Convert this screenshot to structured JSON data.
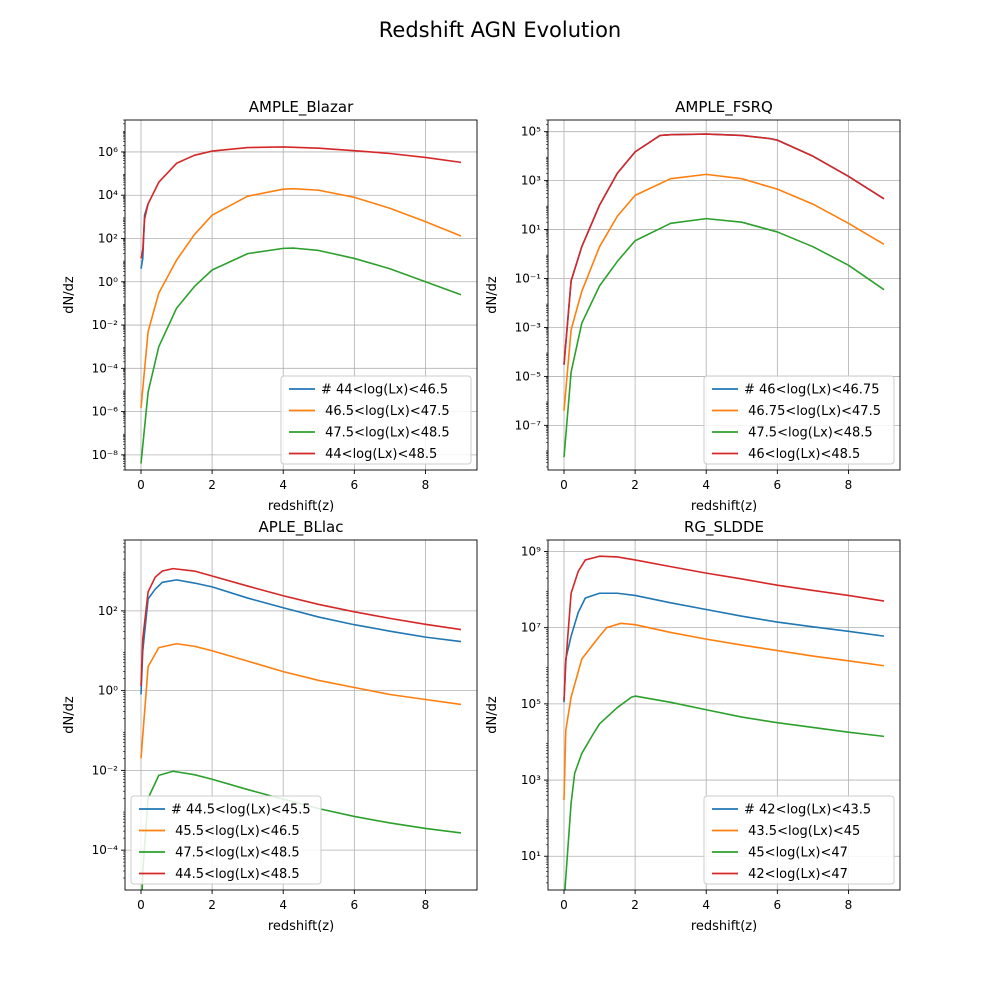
{
  "title": "Redshift AGN Evolution",
  "chart_data": [
    {
      "type": "line",
      "title": "AMPLE_Blazar",
      "xlabel": "redshift(z)",
      "ylabel": "dN/dz",
      "xscale": "linear",
      "yscale": "log",
      "xlim": [
        -0.45,
        9.45
      ],
      "ylim": [
        2e-09,
        30000000.0
      ],
      "xticks": [
        0,
        2,
        4,
        6,
        8
      ],
      "yticks": [
        -8,
        -6,
        -4,
        -2,
        0,
        2,
        4,
        6
      ],
      "grid": true,
      "legend_position": "lower-right",
      "series": [
        {
          "name": "# 44<log(Lx)<46.5",
          "color": "#1f77b4",
          "x": [
            0,
            0.05,
            0.1,
            0.2
          ],
          "y": [
            4,
            12,
            1200,
            4000
          ]
        },
        {
          "name": " 46.5<log(Lx)<47.5",
          "color": "#ff7f0e",
          "x": [
            0,
            0.2,
            0.5,
            1,
            1.5,
            2,
            3,
            4,
            4.3,
            5,
            6,
            7,
            8,
            9
          ],
          "y": [
            1.5e-06,
            0.005,
            0.3,
            10,
            150,
            1200,
            9000,
            19000,
            20000,
            17000,
            8000,
            2500,
            600,
            130
          ]
        },
        {
          "name": " 47.5<log(Lx)<48.5",
          "color": "#2ca02c",
          "x": [
            0,
            0.2,
            0.5,
            1,
            1.5,
            2,
            3,
            4,
            4.3,
            5,
            6,
            7,
            8,
            9
          ],
          "y": [
            4e-09,
            8e-06,
            0.001,
            0.06,
            0.6,
            3.5,
            20,
            35,
            36,
            28,
            12,
            4,
            1,
            0.25
          ]
        },
        {
          "name": " 44<log(Lx)<48.5",
          "color": "#d62728",
          "x": [
            0,
            0.05,
            0.1,
            0.2,
            0.5,
            1,
            1.5,
            2,
            3,
            4,
            5,
            6,
            7,
            8,
            9
          ],
          "y": [
            12,
            30,
            800,
            4000,
            40000,
            300000,
            700000,
            1100000,
            1600000,
            1700000,
            1500000,
            1150000,
            850000,
            560000,
            330000
          ]
        }
      ]
    },
    {
      "type": "line",
      "title": "AMPLE_FSRQ",
      "xlabel": "redshift(z)",
      "ylabel": "dN/dz",
      "xscale": "linear",
      "yscale": "log",
      "xlim": [
        -0.45,
        9.45
      ],
      "ylim": [
        1.5e-09,
        300000.0
      ],
      "xticks": [
        0,
        2,
        4,
        6,
        8
      ],
      "yticks": [
        -7,
        -5,
        -3,
        -1,
        1,
        3,
        5
      ],
      "grid": true,
      "legend_position": "lower-right",
      "series": [
        {
          "name": "# 46<log(Lx)<46.75",
          "color": "#1f77b4",
          "x": [
            0,
            0.2,
            0.5,
            1,
            1.5,
            2,
            2.7,
            3,
            4,
            5,
            5.8,
            6,
            7,
            8,
            9
          ],
          "y": [
            3e-05,
            0.08,
            2,
            100,
            2000,
            15000,
            70000,
            75000,
            80000,
            70000,
            52000,
            45000,
            10000,
            1500,
            180
          ]
        },
        {
          "name": " 46.75<log(Lx)<47.5",
          "color": "#ff7f0e",
          "x": [
            0,
            0.2,
            0.5,
            1,
            1.5,
            2,
            3,
            4,
            5,
            6,
            7,
            8,
            9
          ],
          "y": [
            4e-07,
            0.0008,
            0.03,
            2,
            35,
            250,
            1200,
            1800,
            1200,
            450,
            110,
            18,
            2.5
          ]
        },
        {
          "name": " 47.5<log(Lx)<48.5",
          "color": "#2ca02c",
          "x": [
            0,
            0.2,
            0.5,
            1,
            1.5,
            2,
            3,
            4,
            5,
            6,
            7,
            8,
            9
          ],
          "y": [
            5e-09,
            1.5e-05,
            0.0015,
            0.05,
            0.5,
            3.5,
            18,
            28,
            20,
            8,
            2,
            0.35,
            0.035
          ]
        },
        {
          "name": " 46<log(Lx)<48.5",
          "color": "#d62728",
          "x": [
            0,
            0.2,
            0.5,
            1,
            1.5,
            2,
            2.7,
            3,
            4,
            5,
            5.8,
            6,
            7,
            8,
            9
          ],
          "y": [
            3e-05,
            0.08,
            2,
            100,
            2000,
            15000,
            70000,
            75000,
            80000,
            70000,
            52000,
            45000,
            10000,
            1500,
            180
          ]
        }
      ]
    },
    {
      "type": "line",
      "title": "APLE_BLlac",
      "xlabel": "redshift(z)",
      "ylabel": "dN/dz",
      "xscale": "linear",
      "yscale": "log",
      "xlim": [
        -0.45,
        9.45
      ],
      "ylim": [
        1e-05,
        6000
      ],
      "xticks": [
        0,
        2,
        4,
        6,
        8
      ],
      "yticks": [
        -4,
        -2,
        0,
        2
      ],
      "grid": true,
      "legend_position": "lower-left",
      "series": [
        {
          "name": "# 44.5<log(Lx)<45.5",
          "color": "#1f77b4",
          "x": [
            0,
            0.05,
            0.2,
            0.4,
            0.6,
            1,
            1.5,
            2,
            3,
            4,
            5,
            6,
            7,
            8,
            9
          ],
          "y": [
            0.8,
            10,
            200,
            350,
            520,
            600,
            500,
            400,
            210,
            120,
            70,
            45,
            31,
            22,
            17
          ]
        },
        {
          "name": " 45.5<log(Lx)<46.5",
          "color": "#ff7f0e",
          "x": [
            0,
            0.2,
            0.5,
            1,
            1.5,
            2,
            3,
            4,
            5,
            6,
            7,
            8,
            9
          ],
          "y": [
            0.02,
            4,
            12,
            15,
            13,
            10,
            5.5,
            3,
            1.8,
            1.2,
            0.8,
            0.6,
            0.45
          ]
        },
        {
          "name": " 47.5<log(Lx)<48.5",
          "color": "#2ca02c",
          "x": [
            0,
            0.05,
            0.2,
            0.5,
            0.9,
            1.5,
            2,
            3,
            4,
            5,
            6,
            7,
            8,
            9
          ],
          "y": [
            1e-06,
            3e-05,
            0.002,
            0.0075,
            0.0095,
            0.0078,
            0.006,
            0.0033,
            0.0019,
            0.0011,
            0.0007,
            0.00048,
            0.00035,
            0.00027
          ]
        },
        {
          "name": " 44.5<log(Lx)<48.5",
          "color": "#d62728",
          "x": [
            0,
            0.05,
            0.2,
            0.4,
            0.6,
            0.9,
            1.5,
            2,
            3,
            4,
            5,
            6,
            7,
            8,
            9
          ],
          "y": [
            1.3,
            20,
            300,
            700,
            1000,
            1150,
            1000,
            750,
            420,
            240,
            145,
            95,
            65,
            46,
            34
          ]
        }
      ]
    },
    {
      "type": "line",
      "title": "RG_SLDDE",
      "xlabel": "redshift(z)",
      "ylabel": "dN/dz",
      "xscale": "linear",
      "yscale": "log",
      "xlim": [
        -0.45,
        9.45
      ],
      "ylim": [
        1.3,
        2000000000.0
      ],
      "xticks": [
        0,
        2,
        4,
        6,
        8
      ],
      "yticks": [
        1,
        3,
        5,
        7,
        9
      ],
      "grid": true,
      "legend_position": "lower-right",
      "series": [
        {
          "name": "# 42<log(Lx)<43.5",
          "color": "#1f77b4",
          "x": [
            0,
            0.05,
            0.2,
            0.4,
            0.6,
            1,
            1.5,
            2,
            3,
            4,
            5,
            6,
            7,
            8,
            9
          ],
          "y": [
            110000,
            1500000,
            6000000,
            25000000,
            60000000,
            80000000,
            80000000,
            70000000,
            45000000,
            30000000,
            20000000,
            14000000,
            10500000,
            8000000,
            6000000
          ]
        },
        {
          "name": " 43.5<log(Lx)<45",
          "color": "#ff7f0e",
          "x": [
            0,
            0.05,
            0.2,
            0.5,
            1,
            1.2,
            1.6,
            2,
            3,
            4,
            5,
            6,
            7,
            8,
            9
          ],
          "y": [
            300,
            20000,
            150000,
            1500000,
            6000000,
            10000000,
            13000000,
            12000000,
            7500000,
            5000000,
            3500000,
            2500000,
            1800000,
            1350000,
            1000000
          ]
        },
        {
          "name": " 45<log(Lx)<47",
          "color": "#2ca02c",
          "x": [
            0,
            0.2,
            0.3,
            0.5,
            0.8,
            1,
            1.5,
            1.9,
            2,
            3,
            4,
            5,
            6,
            7,
            8,
            9
          ],
          "y": [
            0.6,
            250,
            1500,
            5000,
            15000,
            30000,
            80000,
            150000,
            160000,
            110000,
            70000,
            45000,
            32000,
            24000,
            18000,
            14000
          ]
        },
        {
          "name": " 42<log(Lx)<47",
          "color": "#d62728",
          "x": [
            0,
            0.05,
            0.2,
            0.4,
            0.6,
            1,
            1.5,
            2,
            3,
            4,
            5,
            6,
            7,
            8,
            9
          ],
          "y": [
            120000,
            1200000,
            80000000,
            300000000,
            600000000,
            750000000,
            720000000,
            600000000,
            400000000,
            270000000,
            190000000,
            130000000,
            95000000,
            70000000,
            50000000
          ]
        }
      ]
    }
  ]
}
